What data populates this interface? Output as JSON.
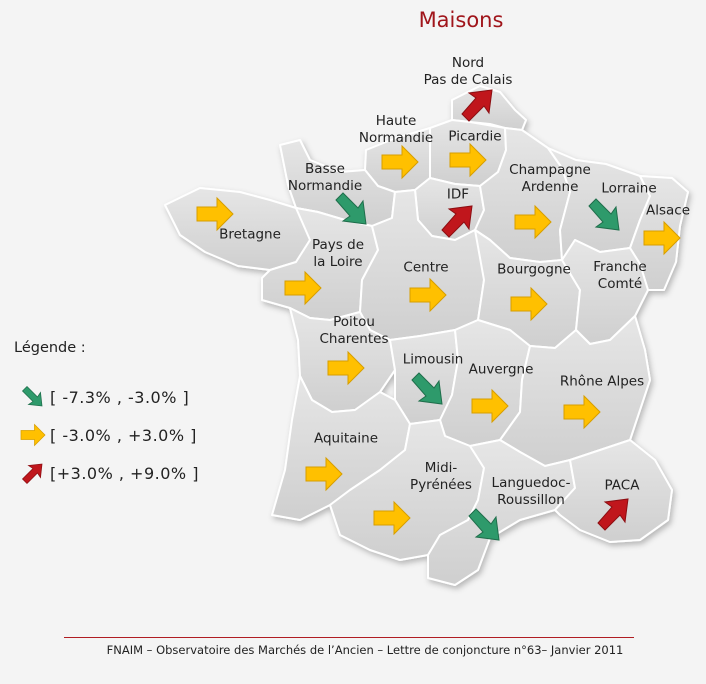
{
  "title": "Maisons",
  "legend": {
    "title": "Légende :",
    "items": [
      {
        "label": "[ -7.3% , -3.0% ]",
        "color": "#2e9a6b",
        "direction": "down-right"
      },
      {
        "label": "[ -3.0% , +3.0% ]",
        "color": "#ffc000",
        "direction": "right"
      },
      {
        "label": "[+3.0% , +9.0% ]",
        "color": "#c0161c",
        "direction": "up-right"
      }
    ]
  },
  "colors": {
    "green": "#2e9a6b",
    "yellow": "#ffc000",
    "red": "#c0161c",
    "region_fill": "#dcdcdc",
    "region_border": "#ffffff"
  },
  "regions": [
    {
      "id": "nord-pas-de-calais",
      "name": "Nord\nPas de Calais",
      "trend": "up"
    },
    {
      "id": "haute-normandie",
      "name": "Haute\nNormandie",
      "trend": "flat"
    },
    {
      "id": "picardie",
      "name": "Picardie",
      "trend": "flat"
    },
    {
      "id": "basse-normandie",
      "name": "Basse\nNormandie",
      "trend": "down"
    },
    {
      "id": "champagne-ardenne",
      "name": "Champagne\nArdenne",
      "trend": "flat"
    },
    {
      "id": "lorraine",
      "name": "Lorraine",
      "trend": "down"
    },
    {
      "id": "idf",
      "name": "IDF",
      "trend": "up"
    },
    {
      "id": "alsace",
      "name": "Alsace",
      "trend": "flat"
    },
    {
      "id": "bretagne",
      "name": "Bretagne",
      "trend": "flat"
    },
    {
      "id": "pays-de-la-loire",
      "name": "Pays de\nla Loire",
      "trend": "flat"
    },
    {
      "id": "centre",
      "name": "Centre",
      "trend": "flat"
    },
    {
      "id": "bourgogne",
      "name": "Bourgogne",
      "trend": "flat"
    },
    {
      "id": "franche-comte",
      "name": "Franche\nComté",
      "trend": "none"
    },
    {
      "id": "poitou-charentes",
      "name": "Poitou\nCharentes",
      "trend": "flat"
    },
    {
      "id": "limousin",
      "name": "Limousin",
      "trend": "down"
    },
    {
      "id": "auvergne",
      "name": "Auvergne",
      "trend": "flat"
    },
    {
      "id": "rhone-alpes",
      "name": "Rhône Alpes",
      "trend": "flat"
    },
    {
      "id": "aquitaine",
      "name": "Aquitaine",
      "trend": "flat"
    },
    {
      "id": "midi-pyrenees",
      "name": "Midi-\nPyrénées",
      "trend": "flat"
    },
    {
      "id": "languedoc-roussillon",
      "name": "Languedoc-\nRoussillon",
      "trend": "down"
    },
    {
      "id": "paca",
      "name": "PACA",
      "trend": "up"
    }
  ],
  "footer": "FNAIM – Observatoire des Marchés de l’Ancien – Lettre de conjoncture n°63– Janvier 2011"
}
